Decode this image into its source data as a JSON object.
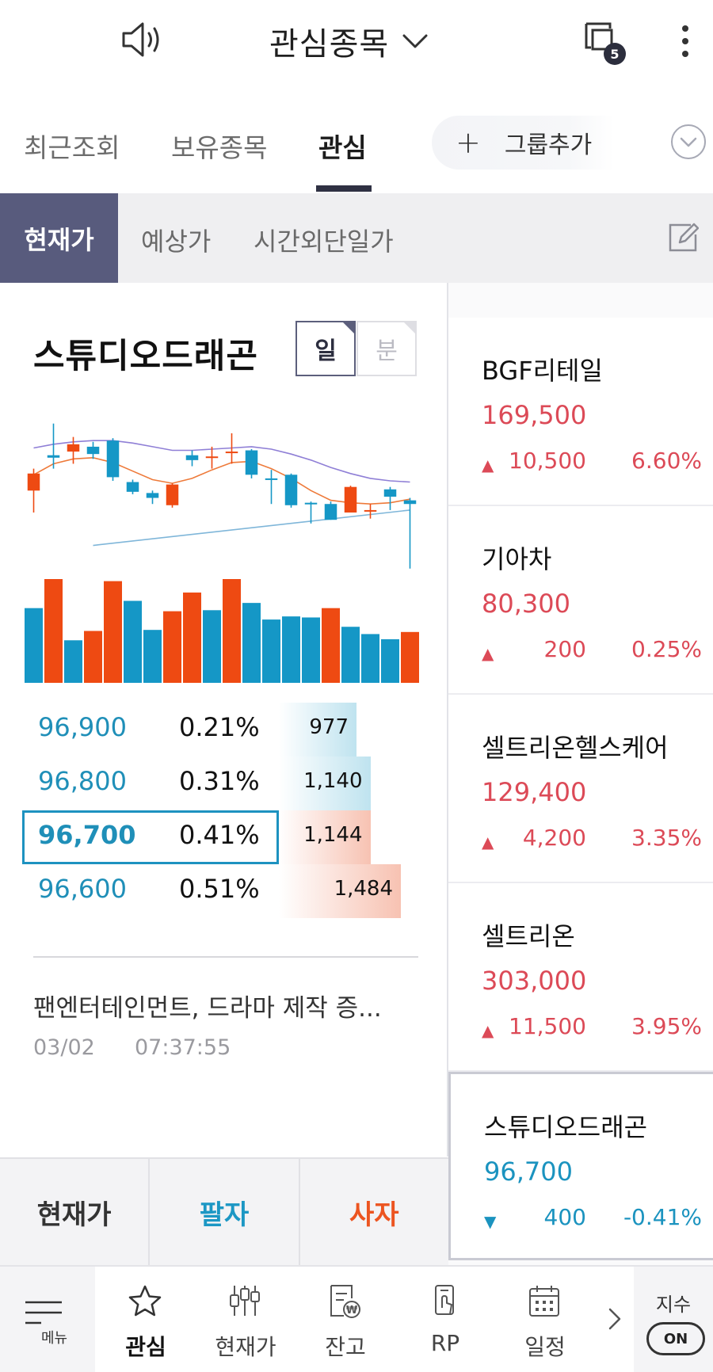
{
  "header": {
    "title": "관심종목",
    "notification_count": "5",
    "icons": {
      "sound": "speaker-icon",
      "title_dropdown": "chevron-down-icon",
      "notifications": "window-stack-icon",
      "more": "kebab-icon"
    }
  },
  "group_tabs": {
    "items": [
      {
        "label": "최근조회",
        "active": false
      },
      {
        "label": "보유종목",
        "active": false
      },
      {
        "label": "관심",
        "active": true
      }
    ],
    "add_group_label": "그룹추가"
  },
  "price_types": {
    "items": [
      {
        "label": "현재가",
        "active": true
      },
      {
        "label": "예상가",
        "active": false
      },
      {
        "label": "시간외단일가",
        "active": false
      }
    ]
  },
  "detail": {
    "stock_name": "스튜디오드래곤",
    "period_day": "일",
    "period_minute": "분",
    "orderbook": [
      {
        "price": "96,900",
        "rate": "0.21%",
        "qty": "977",
        "side": "ask",
        "fill": 0.56
      },
      {
        "price": "96,800",
        "rate": "0.31%",
        "qty": "1,140",
        "side": "ask",
        "fill": 0.66
      },
      {
        "price": "96,700",
        "rate": "0.41%",
        "qty": "1,144",
        "side": "bid",
        "fill": 0.66,
        "current": true
      },
      {
        "price": "96,600",
        "rate": "0.51%",
        "qty": "1,484",
        "side": "bid",
        "fill": 0.88
      }
    ],
    "news": {
      "title": "팬엔터테인먼트, 드라마 제작 증...",
      "date": "03/02",
      "time": "07:37:55"
    },
    "actions": {
      "current": "현재가",
      "sell": "팔자",
      "buy": "사자"
    }
  },
  "chart_data": {
    "type": "candlestick",
    "candles": [
      {
        "o": 96.0,
        "h": 97.8,
        "l": 94.2,
        "c": 97.4,
        "color": "up"
      },
      {
        "o": 98.7,
        "h": 101.5,
        "l": 97.8,
        "c": 98.9,
        "color": "down"
      },
      {
        "o": 99.2,
        "h": 100.4,
        "l": 98.2,
        "c": 99.8,
        "color": "up"
      },
      {
        "o": 99.6,
        "h": 100.0,
        "l": 98.6,
        "c": 99.0,
        "color": "down"
      },
      {
        "o": 100.1,
        "h": 100.3,
        "l": 96.8,
        "c": 97.1,
        "color": "down"
      },
      {
        "o": 96.7,
        "h": 96.9,
        "l": 95.7,
        "c": 95.9,
        "color": "down"
      },
      {
        "o": 95.8,
        "h": 96.0,
        "l": 94.9,
        "c": 95.4,
        "color": "down"
      },
      {
        "o": 94.8,
        "h": 96.6,
        "l": 94.6,
        "c": 96.5,
        "color": "up"
      },
      {
        "o": 98.9,
        "h": 99.3,
        "l": 98.0,
        "c": 98.5,
        "color": "down"
      },
      {
        "o": 98.8,
        "h": 99.6,
        "l": 97.8,
        "c": 98.8,
        "color": "up"
      },
      {
        "o": 99.1,
        "h": 100.7,
        "l": 98.2,
        "c": 99.2,
        "color": "up"
      },
      {
        "o": 99.3,
        "h": 99.4,
        "l": 97.0,
        "c": 97.3,
        "color": "down"
      },
      {
        "o": 97.0,
        "h": 97.7,
        "l": 94.9,
        "c": 97.0,
        "color": "down"
      },
      {
        "o": 97.3,
        "h": 97.4,
        "l": 94.6,
        "c": 94.8,
        "color": "down"
      },
      {
        "o": 95.0,
        "h": 95.1,
        "l": 93.3,
        "c": 95.0,
        "color": "down"
      },
      {
        "o": 94.9,
        "h": 95.1,
        "l": 93.6,
        "c": 93.6,
        "color": "down"
      },
      {
        "o": 94.2,
        "h": 96.4,
        "l": 94.2,
        "c": 96.3,
        "color": "up"
      },
      {
        "o": 94.4,
        "h": 94.9,
        "l": 93.7,
        "c": 94.4,
        "color": "up"
      },
      {
        "o": 96.1,
        "h": 96.3,
        "l": 94.4,
        "c": 95.5,
        "color": "down"
      },
      {
        "o": 95.2,
        "h": 95.4,
        "l": 89.6,
        "c": 94.9,
        "color": "down"
      }
    ],
    "volume": [
      {
        "v": 0.72,
        "color": "down"
      },
      {
        "v": 1.0,
        "color": "up"
      },
      {
        "v": 0.41,
        "color": "down"
      },
      {
        "v": 0.5,
        "color": "up"
      },
      {
        "v": 0.98,
        "color": "up"
      },
      {
        "v": 0.79,
        "color": "down"
      },
      {
        "v": 0.51,
        "color": "down"
      },
      {
        "v": 0.69,
        "color": "up"
      },
      {
        "v": 0.87,
        "color": "up"
      },
      {
        "v": 0.7,
        "color": "down"
      },
      {
        "v": 1.0,
        "color": "up"
      },
      {
        "v": 0.77,
        "color": "down"
      },
      {
        "v": 0.61,
        "color": "down"
      },
      {
        "v": 0.64,
        "color": "down"
      },
      {
        "v": 0.63,
        "color": "down"
      },
      {
        "v": 0.72,
        "color": "up"
      },
      {
        "v": 0.54,
        "color": "down"
      },
      {
        "v": 0.47,
        "color": "down"
      },
      {
        "v": 0.42,
        "color": "down"
      },
      {
        "v": 0.49,
        "color": "up"
      }
    ],
    "ma_short": [
      97.3,
      98.2,
      98.6,
      98.7,
      98.3,
      97.6,
      96.9,
      96.6,
      97.0,
      97.7,
      98.3,
      98.4,
      97.8,
      97.0,
      96.0,
      95.2,
      95.0,
      94.9,
      95.0,
      95.3
    ],
    "ma_long": [
      99.5,
      99.8,
      100.0,
      100.1,
      100.1,
      99.9,
      99.6,
      99.3,
      99.3,
      99.4,
      99.5,
      99.6,
      99.4,
      99.0,
      98.5,
      97.9,
      97.4,
      97.0,
      96.8,
      96.7
    ],
    "trendline": [
      [
        3,
        91.5
      ],
      [
        19,
        94.4
      ]
    ],
    "ylim": [
      89.0,
      102.0
    ],
    "colors": {
      "up": "#ee4a12",
      "down": "#1597c6",
      "ma_short": "#ee7a3a",
      "ma_long": "#8f7fd6",
      "trend": "#7fb6d9"
    }
  },
  "watchlist": [
    {
      "name": "BGF리테일",
      "price": "169,500",
      "direction": "up",
      "change": "10,500",
      "rate": "6.60%"
    },
    {
      "name": "기아차",
      "price": "80,300",
      "direction": "up",
      "change": "200",
      "rate": "0.25%"
    },
    {
      "name": "셀트리온헬스케어",
      "price": "129,400",
      "direction": "up",
      "change": "4,200",
      "rate": "3.35%"
    },
    {
      "name": "셀트리온",
      "price": "303,000",
      "direction": "up",
      "change": "11,500",
      "rate": "3.95%"
    },
    {
      "name": "스튜디오드래곤",
      "price": "96,700",
      "direction": "down",
      "change": "400",
      "rate": "-0.41%",
      "selected": true
    }
  ],
  "bottom_nav": {
    "menu_label": "메뉴",
    "items": [
      {
        "label": "관심",
        "icon": "star-icon",
        "active": true
      },
      {
        "label": "현재가",
        "icon": "sliders-icon",
        "active": false
      },
      {
        "label": "잔고",
        "icon": "balance-doc-icon",
        "active": false
      },
      {
        "label": "RP",
        "icon": "rp-phone-icon",
        "active": false
      },
      {
        "label": "일정",
        "icon": "calendar-icon",
        "active": false
      }
    ],
    "index_label": "지수",
    "index_toggle": "ON"
  }
}
